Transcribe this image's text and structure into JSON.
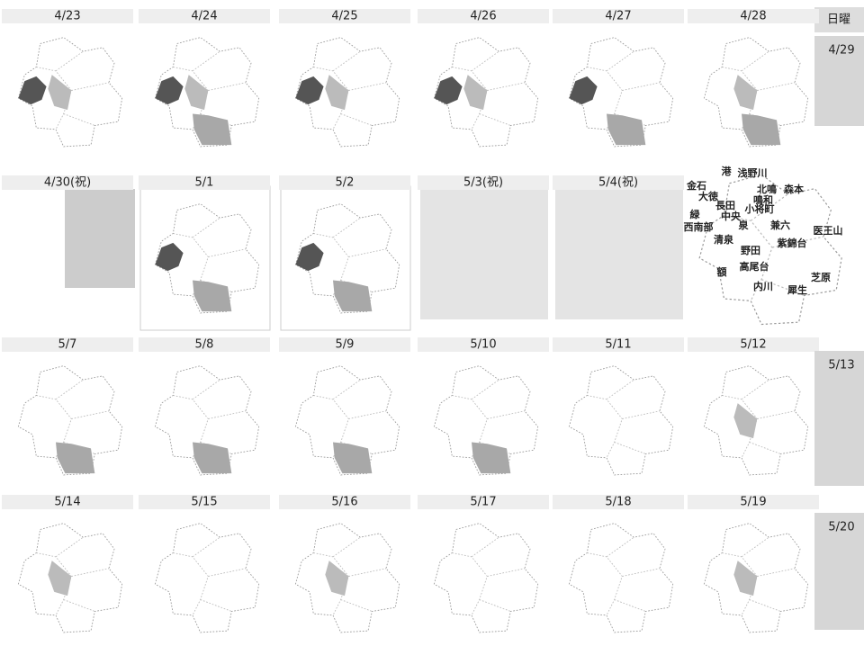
{
  "weekday_header": "日曜",
  "weeks": [
    {
      "days": [
        "4/23",
        "4/24",
        "4/25",
        "4/26",
        "4/27",
        "4/28"
      ],
      "sunday": "4/29"
    },
    {
      "days": [
        "4/30(祝)",
        "5/1",
        "5/2",
        "5/3(祝)",
        "5/4(祝)"
      ]
    },
    {
      "days": [
        "5/7",
        "5/8",
        "5/9",
        "5/10",
        "5/11",
        "5/12"
      ],
      "sunday": "5/13"
    },
    {
      "days": [
        "5/14",
        "5/15",
        "5/16",
        "5/17",
        "5/18",
        "5/19"
      ],
      "sunday": "5/20"
    }
  ],
  "districts": [
    "港",
    "浅野川",
    "金石",
    "北鳴",
    "森本",
    "大徳",
    "鳴和",
    "長田",
    "小将町",
    "緑",
    "中央",
    "西南部",
    "泉",
    "兼六",
    "医王山",
    "清泉",
    "野田",
    "紫錦台",
    "額",
    "高尾台",
    "芝原",
    "内川",
    "犀生"
  ]
}
